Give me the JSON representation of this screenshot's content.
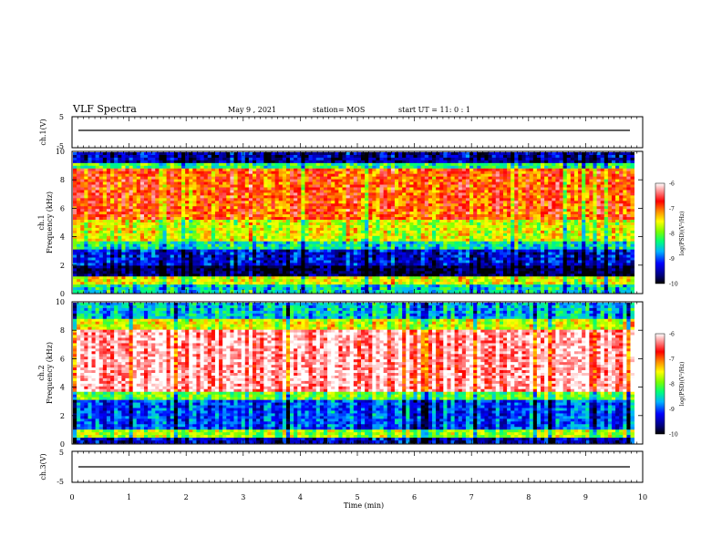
{
  "header": {
    "title": "VLF Spectra",
    "date": "May 9 , 2021",
    "station": "station= MOS",
    "start": "start UT = 11: 0 : 1"
  },
  "chart_data": [
    {
      "type": "line",
      "name": "ch1-voltage",
      "ylabel": "ch.1(V)",
      "ylim": [
        -5,
        5
      ],
      "yticks": [
        "5",
        "-5"
      ],
      "xlim": [
        0,
        10
      ],
      "series": [
        {
          "values_note": "",
          "level": 0
        }
      ]
    },
    {
      "type": "heatmap",
      "name": "ch1-spectrogram",
      "ylabel": "ch.1\nFrequency (kHz)",
      "ylabel_lines": [
        "ch.1",
        "Frequency (kHz)"
      ],
      "ylim": [
        0,
        10
      ],
      "yticks": [
        "0",
        "2",
        "4",
        "6",
        "8",
        "10"
      ],
      "xlim": [
        0,
        9.85
      ],
      "color_range": [
        -10,
        -6
      ],
      "colorbar_label": "log(PSD)(V²/Hz)",
      "colorbar_ticks": [
        "-6",
        "-7",
        "-8",
        "-9",
        "-10"
      ],
      "bands": [
        {
          "from": 0.0,
          "to": 0.5,
          "level": -8.5
        },
        {
          "from": 0.5,
          "to": 1.2,
          "level": -7.6
        },
        {
          "from": 1.2,
          "to": 2.0,
          "level": -9.8
        },
        {
          "from": 2.0,
          "to": 3.0,
          "level": -9.3
        },
        {
          "from": 3.0,
          "to": 3.6,
          "level": -8.4
        },
        {
          "from": 3.6,
          "to": 5.2,
          "level": -7.6
        },
        {
          "from": 5.2,
          "to": 8.8,
          "level": -6.9
        },
        {
          "from": 8.8,
          "to": 9.3,
          "level": -8.2
        },
        {
          "from": 9.3,
          "to": 10.0,
          "level": -9.5
        }
      ]
    },
    {
      "type": "heatmap",
      "name": "ch2-spectrogram",
      "ylabel": "ch.2\nFrequency (kHz)",
      "ylabel_lines": [
        "ch.2",
        "Frequency (kHz)"
      ],
      "ylim": [
        0,
        10
      ],
      "yticks": [
        "0",
        "2",
        "4",
        "6",
        "8",
        "10"
      ],
      "xlim": [
        0,
        9.85
      ],
      "color_range": [
        -10,
        -6
      ],
      "colorbar_label": "log(PSD)(V²/Hz)",
      "colorbar_ticks": [
        "-6",
        "-7",
        "-8",
        "-9",
        "-10"
      ],
      "bands": [
        {
          "from": 0.0,
          "to": 0.4,
          "level": -9.4
        },
        {
          "from": 0.4,
          "to": 1.0,
          "level": -7.8
        },
        {
          "from": 1.0,
          "to": 3.0,
          "level": -9.0
        },
        {
          "from": 3.0,
          "to": 3.6,
          "level": -8.0
        },
        {
          "from": 3.6,
          "to": 8.0,
          "level": -6.2
        },
        {
          "from": 8.0,
          "to": 8.8,
          "level": -7.6
        },
        {
          "from": 8.8,
          "to": 10.0,
          "level": -8.6
        }
      ]
    },
    {
      "type": "line",
      "name": "ch3-voltage",
      "ylabel": "ch.3(V)",
      "ylim": [
        -5,
        5
      ],
      "yticks": [
        "5",
        "-5"
      ],
      "xlim": [
        0,
        10
      ],
      "xlabel": "Time (min)",
      "xticks": [
        "0",
        "1",
        "2",
        "3",
        "4",
        "5",
        "6",
        "7",
        "8",
        "9",
        "10"
      ],
      "series": [
        {
          "level": -1.5
        }
      ]
    }
  ]
}
